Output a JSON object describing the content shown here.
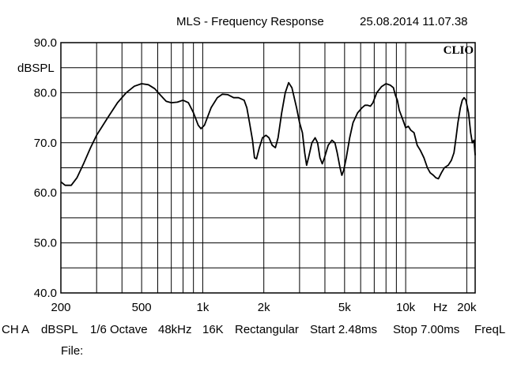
{
  "chart_data": {
    "type": "line",
    "title": "MLS - Frequency Response",
    "timestamp": "25.08.2014 11.07.38",
    "brand": "CLIO",
    "ylabel": "dBSPL",
    "xlabel": "Hz",
    "x_scale": "log",
    "xlim": [
      200,
      22000
    ],
    "ylim": [
      40,
      90
    ],
    "y_ticks": [
      {
        "value": 90,
        "label": "90.0"
      },
      {
        "value": 80,
        "label": "80.0"
      },
      {
        "value": 70,
        "label": "70.0"
      },
      {
        "value": 60,
        "label": "60.0"
      },
      {
        "value": 50,
        "label": "50.0"
      },
      {
        "value": 40,
        "label": "40.0"
      }
    ],
    "x_ticks": [
      {
        "value": 200,
        "label": "200"
      },
      {
        "value": 500,
        "label": "500"
      },
      {
        "value": 1000,
        "label": "1k"
      },
      {
        "value": 2000,
        "label": "2k"
      },
      {
        "value": 5000,
        "label": "5k"
      },
      {
        "value": 10000,
        "label": "10k"
      },
      {
        "value": 20000,
        "label": "20k"
      }
    ],
    "grid": true,
    "series": [
      {
        "color": "#000000",
        "points": [
          [
            200,
            62.2
          ],
          [
            210,
            61.5
          ],
          [
            225,
            61.5
          ],
          [
            240,
            63.0
          ],
          [
            260,
            66.0
          ],
          [
            280,
            69.0
          ],
          [
            300,
            71.5
          ],
          [
            340,
            75.0
          ],
          [
            380,
            78.0
          ],
          [
            420,
            80.0
          ],
          [
            460,
            81.3
          ],
          [
            500,
            81.8
          ],
          [
            540,
            81.6
          ],
          [
            580,
            80.8
          ],
          [
            620,
            79.5
          ],
          [
            660,
            78.3
          ],
          [
            700,
            78.0
          ],
          [
            750,
            78.1
          ],
          [
            800,
            78.5
          ],
          [
            850,
            78.0
          ],
          [
            900,
            76.0
          ],
          [
            950,
            73.5
          ],
          [
            980,
            72.8
          ],
          [
            1020,
            73.5
          ],
          [
            1100,
            77.0
          ],
          [
            1180,
            79.0
          ],
          [
            1250,
            79.7
          ],
          [
            1330,
            79.6
          ],
          [
            1420,
            79.0
          ],
          [
            1500,
            79.0
          ],
          [
            1600,
            78.5
          ],
          [
            1650,
            77.0
          ],
          [
            1700,
            74.0
          ],
          [
            1760,
            70.5
          ],
          [
            1800,
            67.0
          ],
          [
            1840,
            66.8
          ],
          [
            1900,
            69.0
          ],
          [
            1970,
            71.0
          ],
          [
            2050,
            71.5
          ],
          [
            2120,
            71.0
          ],
          [
            2200,
            69.5
          ],
          [
            2280,
            69.0
          ],
          [
            2350,
            71.0
          ],
          [
            2450,
            76.0
          ],
          [
            2550,
            80.0
          ],
          [
            2650,
            82.0
          ],
          [
            2750,
            81.0
          ],
          [
            2900,
            77.0
          ],
          [
            3000,
            74.0
          ],
          [
            3100,
            72.0
          ],
          [
            3180,
            68.0
          ],
          [
            3250,
            65.5
          ],
          [
            3320,
            67.0
          ],
          [
            3450,
            70.0
          ],
          [
            3580,
            71.0
          ],
          [
            3680,
            70.0
          ],
          [
            3780,
            67.0
          ],
          [
            3880,
            65.8
          ],
          [
            3980,
            67.0
          ],
          [
            4150,
            69.5
          ],
          [
            4330,
            70.5
          ],
          [
            4480,
            70.0
          ],
          [
            4600,
            68.0
          ],
          [
            4750,
            65.0
          ],
          [
            4850,
            63.5
          ],
          [
            4950,
            64.5
          ],
          [
            5100,
            67.0
          ],
          [
            5300,
            71.0
          ],
          [
            5500,
            74.0
          ],
          [
            5800,
            76.0
          ],
          [
            6100,
            77.0
          ],
          [
            6300,
            77.5
          ],
          [
            6500,
            77.5
          ],
          [
            6700,
            77.3
          ],
          [
            6900,
            78.0
          ],
          [
            7200,
            80.0
          ],
          [
            7600,
            81.2
          ],
          [
            8000,
            81.8
          ],
          [
            8400,
            81.5
          ],
          [
            8700,
            81.0
          ],
          [
            8900,
            79.5
          ],
          [
            9100,
            78.5
          ],
          [
            9300,
            76.5
          ],
          [
            9600,
            75.0
          ],
          [
            9800,
            74.0
          ],
          [
            10000,
            73.0
          ],
          [
            10300,
            73.3
          ],
          [
            10600,
            72.5
          ],
          [
            11000,
            72.0
          ],
          [
            11400,
            69.5
          ],
          [
            11800,
            68.5
          ],
          [
            12300,
            67.0
          ],
          [
            12800,
            65.0
          ],
          [
            13200,
            64.0
          ],
          [
            13700,
            63.5
          ],
          [
            14100,
            63.0
          ],
          [
            14500,
            62.8
          ],
          [
            15000,
            64.0
          ],
          [
            15500,
            65.0
          ],
          [
            16200,
            65.5
          ],
          [
            16800,
            66.5
          ],
          [
            17300,
            68.0
          ],
          [
            17700,
            71.0
          ],
          [
            18100,
            74.0
          ],
          [
            18600,
            77.0
          ],
          [
            19000,
            78.5
          ],
          [
            19400,
            79.0
          ],
          [
            19800,
            78.5
          ],
          [
            20400,
            76.0
          ],
          [
            20900,
            72.0
          ],
          [
            21300,
            70.0
          ],
          [
            21700,
            70.5
          ],
          [
            22000,
            67.5
          ]
        ]
      }
    ]
  },
  "footer": {
    "channel": "CH A",
    "unit": "dBSPL",
    "smoothing": "1/6 Octave",
    "sample_rate": "48kHz",
    "fft_size": "16K",
    "window": "Rectangular",
    "start": "Start 2.48ms",
    "stop": "Stop 7.00ms",
    "freq_label": "FreqL",
    "file_label": "File:"
  }
}
